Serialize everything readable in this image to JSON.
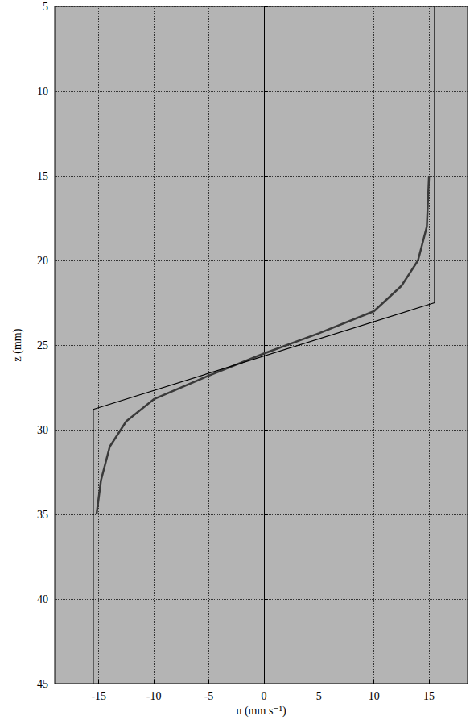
{
  "chart_data": {
    "type": "line",
    "x_label": "u (mm s⁻¹)",
    "y_label": "z (mm)",
    "xlim": [
      -19,
      18.5
    ],
    "xticks": [
      -15,
      -10,
      -5,
      0,
      5,
      10,
      15
    ],
    "ylim": [
      5,
      45
    ],
    "yticks": [
      5,
      10,
      15,
      20,
      25,
      30,
      35,
      40,
      45
    ],
    "y_inverted": true,
    "grid": true,
    "series": [
      {
        "color": "#000000",
        "line_style": "solid",
        "marker": "none",
        "values": [
          [
            15.5,
            5
          ],
          [
            15.5,
            22.5
          ],
          [
            -15.5,
            28.8
          ],
          [
            -15.5,
            45
          ]
        ]
      },
      {
        "color": "#3a3a3a",
        "line_style": "solid",
        "marker": "none",
        "values": [
          [
            15,
            15
          ],
          [
            14.8,
            18
          ],
          [
            14,
            20
          ],
          [
            12.5,
            21.5
          ],
          [
            10,
            23
          ],
          [
            5,
            24.3
          ],
          [
            0,
            25.5
          ],
          [
            -5,
            26.8
          ],
          [
            -10,
            28.2
          ],
          [
            -12.5,
            29.5
          ],
          [
            -14,
            31
          ],
          [
            -14.8,
            33
          ],
          [
            -15.2,
            35
          ]
        ]
      }
    ]
  }
}
